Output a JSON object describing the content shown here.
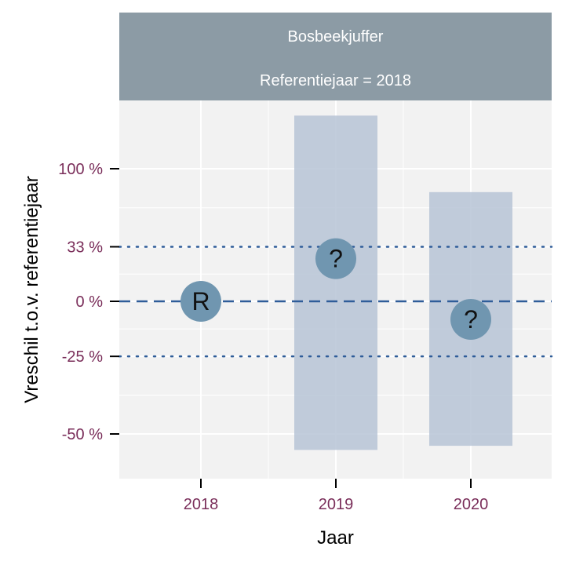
{
  "chart_data": {
    "type": "bar",
    "facet": {
      "title": "Bosbeekjuffer",
      "subtitle": "Referentiejaar = 2018"
    },
    "xlabel": "Jaar",
    "ylabel": "Vreschil t.o.v. referentiejaar",
    "x_ticks": [
      "2018",
      "2019",
      "2020"
    ],
    "y_scale": "log-ratio",
    "y_ticks": [
      {
        "label": "100 %",
        "value": 100
      },
      {
        "label": "33 %",
        "value": 33
      },
      {
        "label": "0 %",
        "value": 0
      },
      {
        "label": "-25 %",
        "value": -25
      },
      {
        "label": "-50 %",
        "value": -50
      }
    ],
    "reference_lines": [
      {
        "value": 33,
        "style": "dotted"
      },
      {
        "value": 0,
        "style": "dashed"
      },
      {
        "value": -25,
        "style": "dotted"
      }
    ],
    "points": [
      {
        "x": "2018",
        "estimate": 0,
        "lower": null,
        "upper": null,
        "marker": "R"
      },
      {
        "x": "2019",
        "estimate": 25,
        "lower": -54,
        "upper": 164,
        "marker": "?"
      },
      {
        "x": "2020",
        "estimate": -9,
        "lower": -53,
        "upper": 77,
        "marker": "?"
      }
    ],
    "colors": {
      "strip": "#8c9ba5",
      "panel": "#f2f2f2",
      "interval": "#b7c4d6",
      "marker": "#7096b0",
      "reference": "#2f5d99",
      "tick_label": "#7a2e5a"
    }
  }
}
